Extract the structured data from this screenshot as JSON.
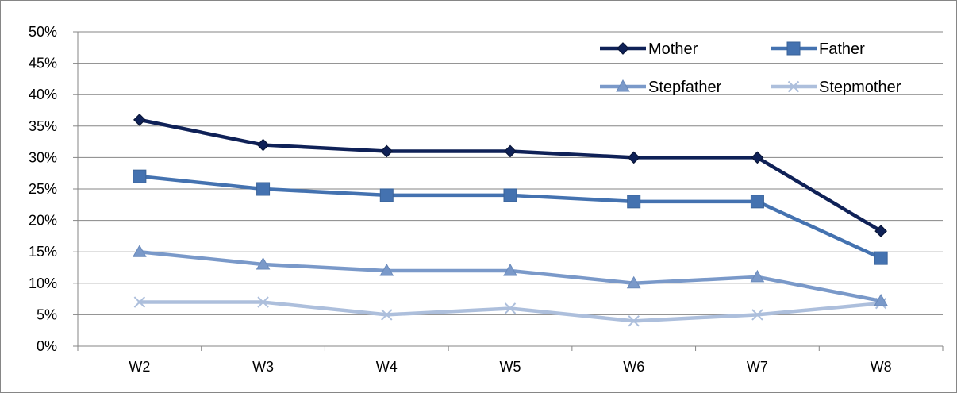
{
  "chart_data": {
    "type": "line",
    "title": "",
    "xlabel": "",
    "ylabel": "",
    "categories": [
      "W2",
      "W3",
      "W4",
      "W5",
      "W6",
      "W7",
      "W8"
    ],
    "ylim": [
      0,
      0.5
    ],
    "yticks": [
      0,
      0.05,
      0.1,
      0.15,
      0.2,
      0.25,
      0.3,
      0.35,
      0.4,
      0.45,
      0.5
    ],
    "ytick_labels": [
      "0%",
      "5%",
      "10%",
      "15%",
      "20%",
      "25%",
      "30%",
      "35%",
      "40%",
      "45%",
      "50%"
    ],
    "grid": true,
    "legend_position": "top-right",
    "series": [
      {
        "name": "Mother",
        "values": [
          0.36,
          0.32,
          0.31,
          0.31,
          0.3,
          0.3,
          0.183
        ],
        "color": "#0f2157",
        "marker": "diamond"
      },
      {
        "name": "Father",
        "values": [
          0.27,
          0.25,
          0.24,
          0.24,
          0.23,
          0.23,
          0.14
        ],
        "color": "#4472b0",
        "marker": "square"
      },
      {
        "name": "Stepfather",
        "values": [
          0.15,
          0.13,
          0.12,
          0.12,
          0.1,
          0.11,
          0.072
        ],
        "color": "#7a99c9",
        "marker": "triangle"
      },
      {
        "name": "Stepmother",
        "values": [
          0.07,
          0.07,
          0.05,
          0.06,
          0.04,
          0.05,
          0.068
        ],
        "color": "#adbfdc",
        "marker": "x"
      }
    ]
  }
}
